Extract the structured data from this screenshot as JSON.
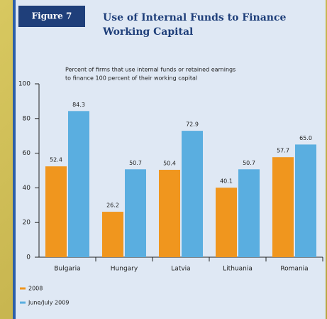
{
  "chart_data": {
    "type": "bar",
    "figure_label": "Figure 7",
    "title": "Use of Internal Funds to Finance",
    "title_line2": "Working Capital",
    "subtitle": "Percent of firms that use internal funds or retained earnings",
    "subtitle_line2": "to finance 100 percent of their working capital",
    "categories": [
      "Bulgaria",
      "Hungary",
      "Latvia",
      "Lithuania",
      "Romania"
    ],
    "series": [
      {
        "name": "2008",
        "color": "#f0961e",
        "values": [
          52.4,
          26.2,
          50.4,
          40.1,
          57.7
        ],
        "value_labels": [
          "52.4",
          "26.2",
          "50.4",
          "40.1",
          "57.7"
        ]
      },
      {
        "name": "June/July 2009",
        "color": "#5aaee0",
        "values": [
          84.3,
          50.7,
          72.9,
          50.7,
          65.0
        ],
        "value_labels": [
          "84.3",
          "50.7",
          "72.9",
          "50.7",
          "65.0"
        ]
      }
    ],
    "ylim": [
      0,
      100
    ],
    "yticks": [
      0,
      20,
      40,
      60,
      80,
      100
    ],
    "grid": false,
    "legend": "bottom-left"
  }
}
